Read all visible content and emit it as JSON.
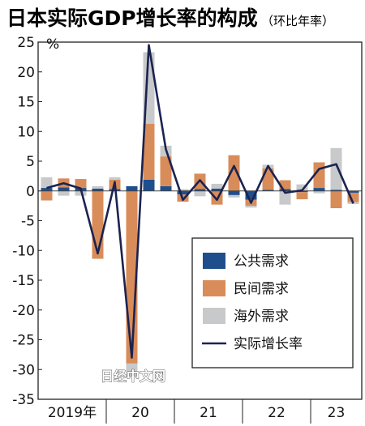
{
  "chart_data": {
    "type": "bar",
    "title": "日本实际GDP增长率的构成",
    "subtitle": "（环比年率）",
    "ylabel": "%",
    "ylim": [
      -35,
      25
    ],
    "yticks": [
      25,
      20,
      15,
      10,
      5,
      0,
      -5,
      -10,
      -15,
      -20,
      -25,
      -30,
      -35
    ],
    "x_group_labels": [
      "2019年",
      "20",
      "21",
      "22",
      "23"
    ],
    "quarters": [
      "2019Q1",
      "2019Q2",
      "2019Q3",
      "2019Q4",
      "2020Q1",
      "2020Q2",
      "2020Q3",
      "2020Q4",
      "2021Q1",
      "2021Q2",
      "2021Q3",
      "2021Q4",
      "2022Q1",
      "2022Q2",
      "2022Q3",
      "2022Q4",
      "2023Q1",
      "2023Q2",
      "2023Q3"
    ],
    "series": [
      {
        "name": "公共需求",
        "type": "bar",
        "color": "#1f4e8c",
        "values": [
          0.5,
          0.6,
          0.5,
          0.4,
          0.3,
          0.8,
          1.9,
          0.8,
          -0.6,
          0.3,
          0.4,
          -0.7,
          -1.5,
          0.2,
          0.3,
          -0.2,
          0.5,
          0.2,
          -0.3
        ]
      },
      {
        "name": "民间需求",
        "type": "bar",
        "color": "#d88c5a",
        "values": [
          -1.6,
          1.5,
          1.5,
          -11.4,
          1.6,
          -29.0,
          9.4,
          5.0,
          -1.2,
          2.6,
          -2.3,
          6.0,
          -1.0,
          3.6,
          1.5,
          -1.2,
          4.3,
          -2.9,
          -1.6
        ]
      },
      {
        "name": "海外需求",
        "type": "bar",
        "color": "#c7c9cb",
        "values": [
          1.8,
          -0.8,
          -0.8,
          0.4,
          0.4,
          -2.3,
          12.0,
          1.8,
          0.3,
          -0.9,
          0.8,
          -0.4,
          -0.3,
          0.6,
          -2.3,
          1.1,
          -0.4,
          7.0,
          -0.3
        ]
      },
      {
        "name": "实际增长率",
        "type": "line",
        "color": "#1b2350",
        "values": [
          0.5,
          1.3,
          0.4,
          -10.5,
          1.5,
          -28.0,
          24.5,
          7.0,
          -1.5,
          1.8,
          -1.5,
          4.2,
          -2.0,
          4.2,
          -0.3,
          0.1,
          3.7,
          4.5,
          -2.1
        ]
      }
    ],
    "legend_position": "bottom-right",
    "grid": false,
    "watermark": "日经中文网"
  }
}
